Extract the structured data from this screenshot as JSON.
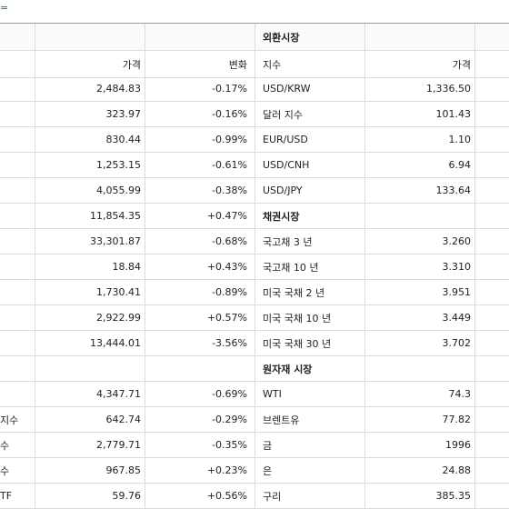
{
  "top_mark": "­",
  "right_header_top": "외환시장",
  "columns": {
    "price": "가격",
    "change": "변화",
    "index": "지수",
    "price2": "가격"
  },
  "rows": [
    {
      "left_name": "",
      "left_price": "2,484.83",
      "left_change": "-0.17%",
      "right_name": "USD/KRW",
      "right_price": "1,336.50"
    },
    {
      "left_name": "",
      "left_price": "323.97",
      "left_change": "-0.16%",
      "right_name": "달러 지수",
      "right_price": "101.43"
    },
    {
      "left_name": "",
      "left_price": "830.44",
      "left_change": "-0.99%",
      "right_name": "EUR/USD",
      "right_price": "1.10"
    },
    {
      "left_name": "",
      "left_price": "1,253.15",
      "left_change": "-0.61%",
      "right_name": "USD/CNH",
      "right_price": "6.94"
    },
    {
      "left_name": "",
      "left_price": "4,055.99",
      "left_change": "-0.38%",
      "right_name": "USD/JPY",
      "right_price": "133.64"
    },
    {
      "left_name": "",
      "left_price": "11,854.35",
      "left_change": "+0.47%",
      "right_name": "채권시장",
      "right_price": "",
      "right_section": true
    },
    {
      "left_name": "",
      "left_price": "33,301.87",
      "left_change": "-0.68%",
      "right_name": "국고채  3 년",
      "right_price": "3.260"
    },
    {
      "left_name": "",
      "left_price": "18.84",
      "left_change": "+0.43%",
      "right_name": "국고채  10 년",
      "right_price": "3.310"
    },
    {
      "left_name": "",
      "left_price": "1,730.41",
      "left_change": "-0.89%",
      "right_name": "미국 국채  2 년",
      "right_price": "3.951"
    },
    {
      "left_name": "",
      "left_price": "2,922.99",
      "left_change": "+0.57%",
      "right_name": "미국 국채  10 년",
      "right_price": "3.449"
    },
    {
      "left_name": "",
      "left_price": "13,444.01",
      "left_change": "-3.56%",
      "right_name": "미국 국채  30 년",
      "right_price": "3.702"
    },
    {
      "left_name": "",
      "left_price": "",
      "left_change": "",
      "right_name": "원자재 시장",
      "right_price": "",
      "right_section": true
    },
    {
      "left_name": "",
      "left_price": "4,347.71",
      "left_change": "-0.69%",
      "right_name": "WTI",
      "right_price": "74.3"
    },
    {
      "left_name": " 지수",
      "left_price": "642.74",
      "left_change": "-0.29%",
      "right_name": "브렌트유",
      "right_price": "77.82"
    },
    {
      "left_name": "수",
      "left_price": "2,779.71",
      "left_change": "-0.35%",
      "right_name": "금",
      "right_price": "1996"
    },
    {
      "left_name": "수",
      "left_price": "967.85",
      "left_change": "+0.23%",
      "right_name": "은",
      "right_price": "24.88"
    },
    {
      "left_name": "TF",
      "left_price": "59.76",
      "left_change": "+0.56%",
      "right_name": "구리",
      "right_price": "385.35"
    }
  ]
}
